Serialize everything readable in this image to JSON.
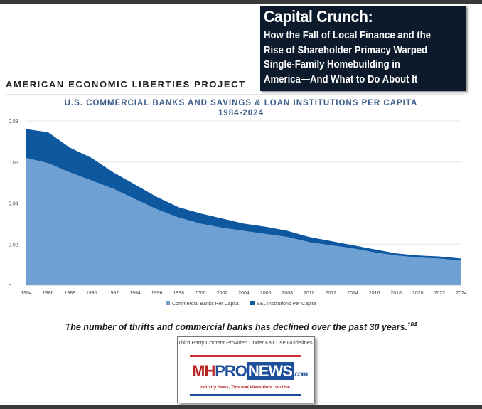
{
  "header": {
    "title": "Capital Crunch:",
    "subtitle_lines": [
      "How the Fall of Local Finance and the",
      "Rise of Shareholder Primacy Warped",
      "Single-Family Homebuilding in",
      "America—And What to Do About It"
    ],
    "org": "AMERICAN ECONOMIC LIBERTIES PROJECT"
  },
  "chart_data": {
    "type": "area",
    "stacked": true,
    "title": "U.S. COMMERCIAL BANKS AND SAVINGS & LOAN INSTITUTIONS PER CAPITA",
    "subtitle": "1984-2024",
    "xlabel": "",
    "ylabel": "",
    "ylim": [
      0,
      0.08
    ],
    "yticks": [
      "0",
      "0.02",
      "0.04",
      "0.06",
      "0.08"
    ],
    "x": [
      "1984",
      "1986",
      "1988",
      "1990",
      "1992",
      "1994",
      "1996",
      "1998",
      "2000",
      "2002",
      "2004",
      "2006",
      "2008",
      "2010",
      "2012",
      "2014",
      "2016",
      "2018",
      "2020",
      "2022",
      "2024"
    ],
    "series": [
      {
        "name": "Commercial Banks Per Capita",
        "color": "#6fa0d4",
        "values": [
          0.062,
          0.0595,
          0.055,
          0.051,
          0.047,
          0.042,
          0.037,
          0.033,
          0.03,
          0.028,
          0.0265,
          0.025,
          0.0235,
          0.021,
          0.0195,
          0.018,
          0.016,
          0.0145,
          0.0135,
          0.013,
          0.012
        ]
      },
      {
        "name": "S&L Institutions Per Capita",
        "color": "#0e58a0",
        "values": [
          0.014,
          0.015,
          0.012,
          0.011,
          0.008,
          0.007,
          0.006,
          0.005,
          0.005,
          0.0045,
          0.0035,
          0.0035,
          0.003,
          0.0025,
          0.002,
          0.0015,
          0.0015,
          0.001,
          0.001,
          0.001,
          0.001
        ]
      }
    ],
    "legend_position": "bottom",
    "grid": false
  },
  "caption": {
    "text": "The number of thrifts and commercial banks has declined over the past 30 years.",
    "footnote": "104"
  },
  "watermark": {
    "note": "Third Party Content Provided Under Fair Use Guidelines.",
    "brand": "MHPRONEWS.com",
    "tagline": "Industry News, Tips and Views Pros can Use."
  }
}
